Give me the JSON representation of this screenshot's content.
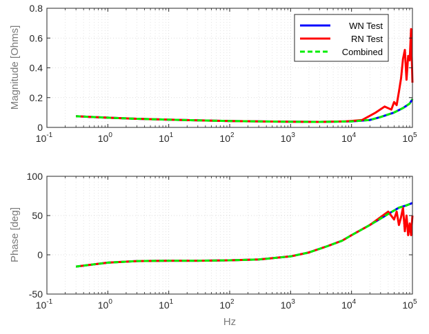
{
  "chart_data": [
    {
      "type": "line",
      "ylabel": "Magnitude [Ohms]",
      "xscale": "log",
      "xlim": [
        0.1,
        100000
      ],
      "ylim": [
        0,
        0.8
      ],
      "xticks": [
        0.1,
        1,
        10,
        100,
        1000,
        10000,
        100000
      ],
      "xtick_labels": [
        {
          "base": "10",
          "exp": "-1"
        },
        {
          "base": "10",
          "exp": "0"
        },
        {
          "base": "10",
          "exp": "1"
        },
        {
          "base": "10",
          "exp": "2"
        },
        {
          "base": "10",
          "exp": "3"
        },
        {
          "base": "10",
          "exp": "4"
        },
        {
          "base": "10",
          "exp": "5"
        }
      ],
      "yticks": [
        0,
        0.2,
        0.4,
        0.6,
        0.8
      ],
      "ytick_labels": [
        "0",
        "0.2",
        "0.4",
        "0.6",
        "0.8"
      ],
      "grid": true,
      "legend_position": "top-right",
      "series": [
        {
          "name": "WN Test",
          "color": "#0000ff",
          "style": "solid",
          "x": [
            0.3,
            1,
            3,
            10,
            30,
            100,
            300,
            1000,
            3000,
            10000,
            20000,
            30000,
            50000,
            70000,
            90000,
            100000
          ],
          "y": [
            0.075,
            0.065,
            0.058,
            0.052,
            0.047,
            0.043,
            0.04,
            0.038,
            0.037,
            0.04,
            0.05,
            0.07,
            0.1,
            0.13,
            0.16,
            0.19
          ]
        },
        {
          "name": "RN Test",
          "color": "#ff0000",
          "style": "solid",
          "x": [
            0.3,
            1,
            3,
            10,
            30,
            100,
            300,
            1000,
            3000,
            8000,
            15000,
            25000,
            35000,
            45000,
            50000,
            55000,
            60000,
            65000,
            70000,
            75000,
            80000,
            85000,
            90000,
            95000,
            100000
          ],
          "y": [
            0.075,
            0.065,
            0.058,
            0.052,
            0.047,
            0.043,
            0.04,
            0.038,
            0.037,
            0.04,
            0.05,
            0.1,
            0.14,
            0.12,
            0.17,
            0.15,
            0.24,
            0.33,
            0.46,
            0.52,
            0.32,
            0.48,
            0.45,
            0.66,
            0.3
          ]
        },
        {
          "name": "Combined",
          "color": "#00ee00",
          "style": "dashed",
          "x": [
            0.3,
            1,
            3,
            10,
            30,
            100,
            300,
            1000,
            3000,
            10000,
            20000,
            30000,
            50000,
            70000,
            90000,
            100000
          ],
          "y": [
            0.075,
            0.065,
            0.058,
            0.052,
            0.047,
            0.043,
            0.04,
            0.038,
            0.037,
            0.04,
            0.05,
            0.07,
            0.1,
            0.13,
            0.16,
            0.19
          ]
        }
      ]
    },
    {
      "type": "line",
      "xlabel": "Hz",
      "ylabel": "Phase [deg]",
      "xscale": "log",
      "xlim": [
        0.1,
        100000
      ],
      "ylim": [
        -50,
        100
      ],
      "xticks": [
        0.1,
        1,
        10,
        100,
        1000,
        10000,
        100000
      ],
      "xtick_labels": [
        {
          "base": "10",
          "exp": "-1"
        },
        {
          "base": "10",
          "exp": "0"
        },
        {
          "base": "10",
          "exp": "1"
        },
        {
          "base": "10",
          "exp": "2"
        },
        {
          "base": "10",
          "exp": "3"
        },
        {
          "base": "10",
          "exp": "4"
        },
        {
          "base": "10",
          "exp": "5"
        }
      ],
      "yticks": [
        -50,
        0,
        50,
        100
      ],
      "ytick_labels": [
        "-50",
        "0",
        "50",
        "100"
      ],
      "grid": true,
      "series": [
        {
          "name": "WN Test",
          "color": "#0000ff",
          "style": "solid",
          "x": [
            0.3,
            1,
            3,
            10,
            30,
            100,
            300,
            1000,
            2000,
            4000,
            7000,
            10000,
            20000,
            40000,
            60000,
            80000,
            100000
          ],
          "y": [
            -15,
            -10,
            -8,
            -7.5,
            -7.5,
            -7,
            -6,
            -2,
            3,
            11,
            18,
            25,
            38,
            52,
            60,
            63,
            66
          ]
        },
        {
          "name": "RN Test",
          "color": "#ff0000",
          "style": "solid",
          "x": [
            0.3,
            1,
            3,
            10,
            30,
            100,
            300,
            1000,
            2000,
            4000,
            7000,
            10000,
            20000,
            30000,
            40000,
            50000,
            55000,
            60000,
            65000,
            70000,
            75000,
            80000,
            85000,
            90000,
            95000,
            100000
          ],
          "y": [
            -15,
            -10,
            -8,
            -7.5,
            -7.5,
            -7,
            -6,
            -2,
            3,
            11,
            18,
            25,
            38,
            48,
            55,
            45,
            55,
            38,
            48,
            60,
            30,
            50,
            25,
            40,
            25,
            50
          ]
        },
        {
          "name": "Combined",
          "color": "#00ee00",
          "style": "dashed",
          "x": [
            0.3,
            1,
            3,
            10,
            30,
            100,
            300,
            1000,
            2000,
            4000,
            7000,
            10000,
            20000,
            40000,
            60000,
            80000,
            100000
          ],
          "y": [
            -15,
            -10,
            -8,
            -7.5,
            -7.5,
            -7,
            -6,
            -2,
            3,
            11,
            18,
            25,
            38,
            52,
            60,
            63,
            66
          ]
        }
      ]
    }
  ]
}
